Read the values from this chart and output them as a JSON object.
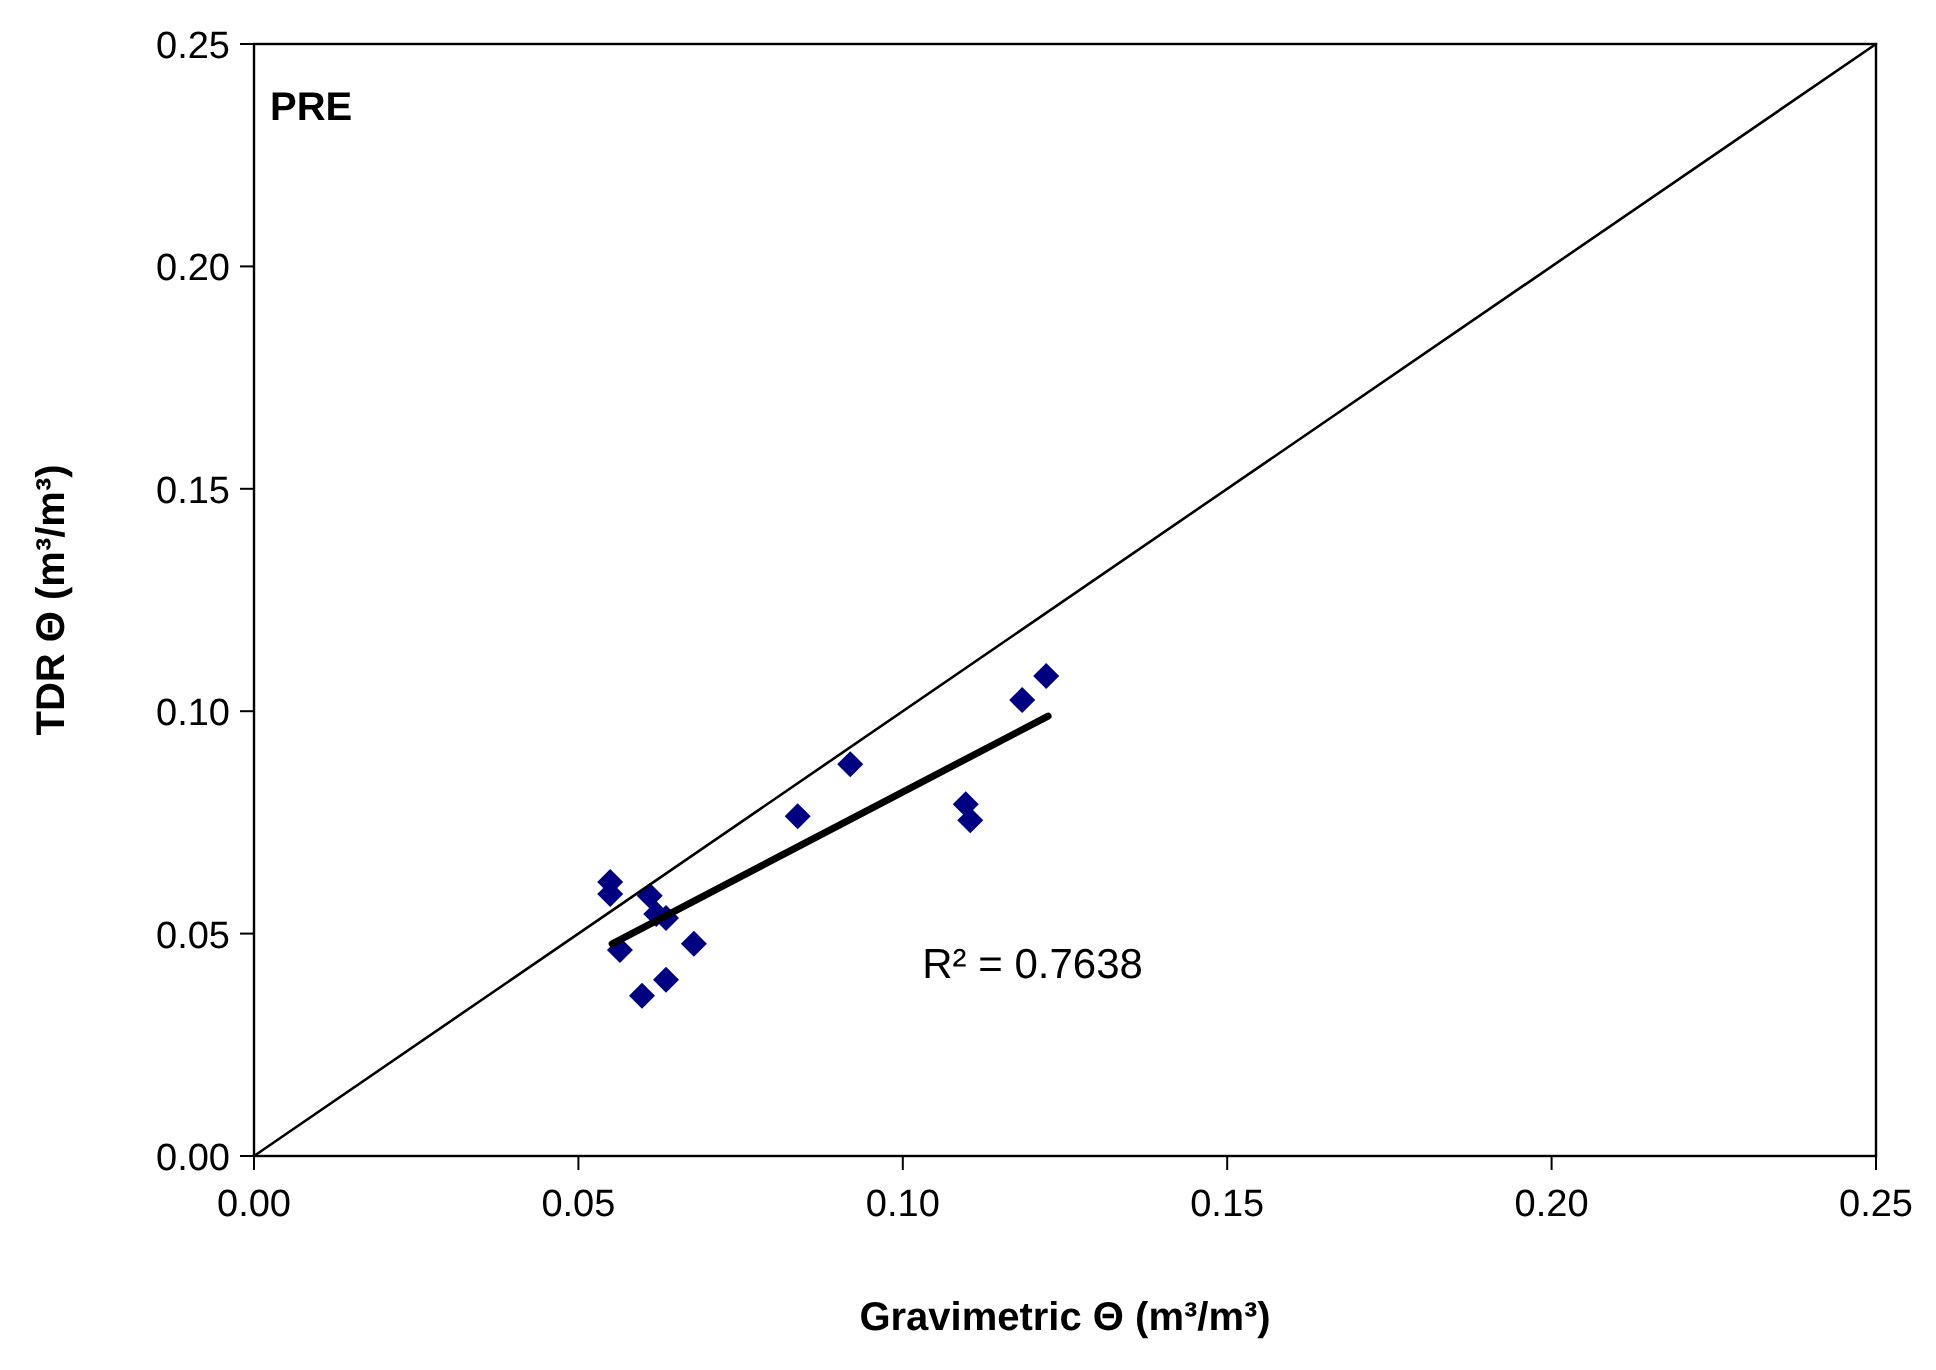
{
  "chart_data": {
    "type": "scatter",
    "xlabel": "Gravimetric Θ (m³/m³)",
    "ylabel": "TDR Θ (m³/m³)",
    "xlim": [
      0,
      0.25
    ],
    "ylim": [
      0,
      0.25
    ],
    "xticks": [
      {
        "value": 0,
        "label": "0.00"
      },
      {
        "value": 0.05,
        "label": "0.05"
      },
      {
        "value": 0.1,
        "label": "0.10"
      },
      {
        "value": 0.15,
        "label": "0.15"
      },
      {
        "value": 0.2,
        "label": "0.20"
      },
      {
        "value": 0.25,
        "label": "0.25"
      }
    ],
    "yticks": [
      {
        "value": 0,
        "label": "0.00"
      },
      {
        "value": 0.05,
        "label": "0.05"
      },
      {
        "value": 0.1,
        "label": "0.10"
      },
      {
        "value": 0.15,
        "label": "0.15"
      },
      {
        "value": 0.2,
        "label": "0.20"
      },
      {
        "value": 0.25,
        "label": "0.25"
      }
    ],
    "grid": false,
    "annotations": [
      "PRE",
      "R² = 0.7638"
    ],
    "series": [
      {
        "color": "#000080",
        "marker": "diamond",
        "x": [
          0.0549,
          0.0549,
          0.0564,
          0.061,
          0.062,
          0.0635,
          0.0598,
          0.0635,
          0.0678,
          0.0838,
          0.0919,
          0.1097,
          0.1104,
          0.1184,
          0.1221
        ],
        "values": [
          0.0616,
          0.0589,
          0.0463,
          0.0585,
          0.0544,
          0.0535,
          0.036,
          0.0396,
          0.0477,
          0.0764,
          0.0881,
          0.0791,
          0.0755,
          0.1025,
          0.1079
        ]
      },
      {
        "type": "line",
        "color": "#000000",
        "marker": "none",
        "line_style": "solid",
        "x": [
          0,
          0.25
        ],
        "values": [
          0,
          0.25
        ]
      },
      {
        "type": "line",
        "color": "#000000",
        "marker": "none",
        "line_style": "solid",
        "x": [
          0.0552,
          0.1224
        ],
        "values": [
          0.0477,
          0.0989
        ]
      }
    ]
  }
}
